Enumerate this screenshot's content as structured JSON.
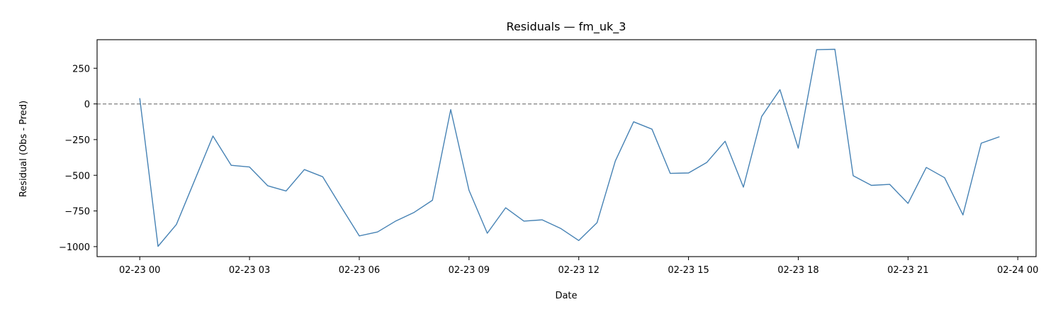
{
  "chart_data": {
    "type": "line",
    "title": "Residuals — fm_uk_3",
    "xlabel": "Date",
    "ylabel": "Residual (Obs - Pred)",
    "xlim": [
      "2023-02-22T22:50",
      "2023-02-24T00:30"
    ],
    "ylim": [
      -1070,
      450
    ],
    "x_ticks": [
      {
        "x": "2023-02-23T00:00",
        "label": "02-23 00"
      },
      {
        "x": "2023-02-23T03:00",
        "label": "02-23 03"
      },
      {
        "x": "2023-02-23T06:00",
        "label": "02-23 06"
      },
      {
        "x": "2023-02-23T09:00",
        "label": "02-23 09"
      },
      {
        "x": "2023-02-23T12:00",
        "label": "02-23 12"
      },
      {
        "x": "2023-02-23T15:00",
        "label": "02-23 15"
      },
      {
        "x": "2023-02-23T18:00",
        "label": "02-23 18"
      },
      {
        "x": "2023-02-23T21:00",
        "label": "02-23 21"
      },
      {
        "x": "2023-02-24T00:00",
        "label": "02-24 00"
      }
    ],
    "y_ticks": [
      {
        "y": 250,
        "label": "250"
      },
      {
        "y": 0,
        "label": "0"
      },
      {
        "y": -250,
        "label": "−250"
      },
      {
        "y": -500,
        "label": "−500"
      },
      {
        "y": -750,
        "label": "−750"
      },
      {
        "y": -1000,
        "label": "−1000"
      }
    ],
    "reference_line": {
      "y": 0,
      "style": "dashed",
      "color": "#808080"
    },
    "grid": false,
    "line_color": "#4682b4",
    "series": [
      {
        "x": [
          "2023-02-23T00:00",
          "2023-02-23T00:30",
          "2023-02-23T01:00",
          "2023-02-23T01:30",
          "2023-02-23T02:00",
          "2023-02-23T02:30",
          "2023-02-23T03:00",
          "2023-02-23T03:30",
          "2023-02-23T04:00",
          "2023-02-23T04:30",
          "2023-02-23T05:00",
          "2023-02-23T05:30",
          "2023-02-23T06:00",
          "2023-02-23T06:30",
          "2023-02-23T07:00",
          "2023-02-23T07:30",
          "2023-02-23T08:00",
          "2023-02-23T08:30",
          "2023-02-23T09:00",
          "2023-02-23T09:30",
          "2023-02-23T10:00",
          "2023-02-23T10:30",
          "2023-02-23T11:00",
          "2023-02-23T11:30",
          "2023-02-23T12:00",
          "2023-02-23T12:30",
          "2023-02-23T13:00",
          "2023-02-23T13:30",
          "2023-02-23T14:00",
          "2023-02-23T14:30",
          "2023-02-23T15:00",
          "2023-02-23T15:30",
          "2023-02-23T16:00",
          "2023-02-23T16:30",
          "2023-02-23T17:00",
          "2023-02-23T17:30",
          "2023-02-23T18:00",
          "2023-02-23T18:30",
          "2023-02-23T19:00",
          "2023-02-23T19:30",
          "2023-02-23T20:00",
          "2023-02-23T20:30",
          "2023-02-23T21:00",
          "2023-02-23T21:30",
          "2023-02-23T22:00",
          "2023-02-23T22:30",
          "2023-02-23T23:00",
          "2023-02-23T23:30"
        ],
        "values": [
          40,
          -998,
          -845,
          -535,
          -225,
          -430,
          -442,
          -574,
          -610,
          -460,
          -510,
          -720,
          -925,
          -897,
          -820,
          -760,
          -675,
          -40,
          -605,
          -906,
          -728,
          -821,
          -812,
          -872,
          -957,
          -832,
          -400,
          -125,
          -177,
          -487,
          -484,
          -410,
          -262,
          -583,
          -88,
          100,
          -310,
          380,
          383,
          -503,
          -571,
          -564,
          -697,
          -445,
          -517,
          -778,
          -275,
          -230
        ]
      }
    ]
  }
}
